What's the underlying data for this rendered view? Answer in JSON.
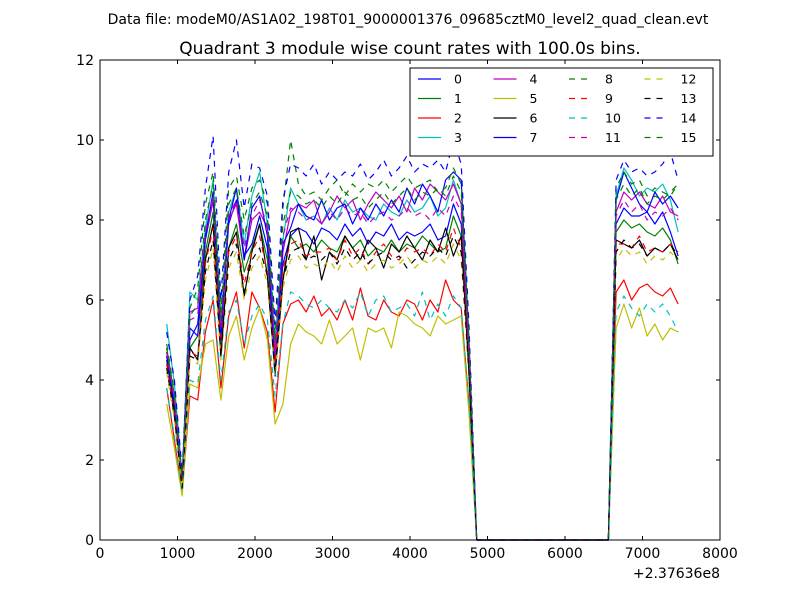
{
  "chart_data": {
    "type": "line",
    "suptitle": "Data file: modeM0/AS1A02_198T01_9000001376_09685cztM0_level2_quad_clean.evt",
    "title": "Quadrant 3 module wise count rates with 100.0s bins.",
    "xlabel": "",
    "ylabel": "",
    "x_offset_label": "+2.37636e8",
    "xlim": [
      0,
      8000
    ],
    "ylim": [
      0,
      12
    ],
    "xticks": [
      0,
      1000,
      2000,
      3000,
      4000,
      5000,
      6000,
      7000,
      8000
    ],
    "yticks": [
      0,
      2,
      4,
      6,
      8,
      10,
      12
    ],
    "grid": false,
    "legend_position": "top-right",
    "legend_columns": 4,
    "x": [
      860,
      960,
      1060,
      1160,
      1260,
      1360,
      1460,
      1560,
      1660,
      1760,
      1860,
      1960,
      2060,
      2160,
      2260,
      2360,
      2460,
      2560,
      2660,
      2760,
      2860,
      2960,
      3060,
      3160,
      3260,
      3360,
      3460,
      3560,
      3660,
      3760,
      3860,
      3960,
      4060,
      4160,
      4260,
      4360,
      4460,
      4560,
      4660,
      4760,
      4860,
      6560,
      6660,
      6760,
      6860,
      6960,
      7060,
      7160,
      7260,
      7360,
      7460
    ],
    "series": [
      {
        "name": "0",
        "color": "#0000ff",
        "dash": "solid",
        "values": [
          4.7,
          3.2,
          1.5,
          5.0,
          5.4,
          7.5,
          8.5,
          5.2,
          7.9,
          8.5,
          7.1,
          7.4,
          8.1,
          7.3,
          4.7,
          6.9,
          7.6,
          7.8,
          7.7,
          7.4,
          7.8,
          7.7,
          7.5,
          7.9,
          7.6,
          7.8,
          7.4,
          7.7,
          7.6,
          7.9,
          7.5,
          7.7,
          7.6,
          7.7,
          7.9,
          7.5,
          7.6,
          8.4,
          7.9,
          4.5,
          0.0,
          0.0,
          7.9,
          8.3,
          8.1,
          8.1,
          8.2,
          7.9,
          8.2,
          7.7,
          7.1
        ]
      },
      {
        "name": "1",
        "color": "#008000",
        "dash": "solid",
        "values": [
          4.6,
          3.3,
          1.4,
          4.8,
          5.1,
          7.2,
          8.2,
          4.6,
          7.3,
          7.9,
          6.7,
          7.3,
          7.9,
          7.0,
          4.5,
          6.5,
          7.6,
          7.3,
          7.4,
          7.2,
          7.5,
          7.3,
          7.2,
          7.6,
          7.3,
          7.5,
          7.1,
          7.3,
          7.2,
          7.5,
          7.2,
          7.4,
          7.3,
          7.6,
          7.4,
          7.2,
          7.3,
          8.1,
          7.6,
          4.3,
          0.0,
          0.0,
          7.7,
          8.0,
          7.8,
          7.9,
          7.7,
          7.6,
          7.8,
          7.5,
          6.9
        ]
      },
      {
        "name": "2",
        "color": "#ff0000",
        "dash": "solid",
        "values": [
          3.8,
          2.5,
          1.2,
          3.6,
          3.5,
          5.2,
          6.0,
          3.8,
          5.6,
          6.2,
          4.8,
          6.2,
          5.8,
          5.2,
          3.2,
          5.4,
          5.9,
          6.0,
          5.7,
          6.1,
          5.6,
          5.8,
          5.5,
          6.0,
          5.5,
          6.3,
          5.6,
          5.5,
          6.0,
          5.7,
          5.6,
          6.0,
          5.9,
          5.5,
          6.0,
          5.7,
          6.5,
          6.0,
          5.8,
          3.4,
          0.0,
          0.0,
          6.2,
          6.5,
          6.0,
          6.3,
          6.4,
          6.2,
          6.1,
          6.3,
          5.9
        ]
      },
      {
        "name": "3",
        "color": "#00bfbf",
        "dash": "solid",
        "values": [
          5.4,
          3.9,
          1.6,
          6.2,
          6.0,
          7.8,
          9.0,
          5.5,
          8.2,
          8.8,
          7.4,
          8.6,
          9.2,
          7.9,
          5.0,
          7.5,
          8.8,
          8.4,
          8.0,
          8.1,
          7.9,
          8.3,
          8.0,
          8.5,
          8.2,
          8.3,
          8.1,
          8.0,
          8.4,
          8.2,
          8.1,
          8.5,
          8.2,
          8.3,
          8.6,
          8.1,
          8.3,
          9.0,
          8.4,
          4.8,
          0.0,
          0.0,
          8.6,
          9.3,
          9.0,
          8.6,
          8.8,
          8.7,
          8.9,
          8.5,
          7.7
        ]
      },
      {
        "name": "4",
        "color": "#bf00bf",
        "dash": "solid",
        "values": [
          4.8,
          3.6,
          1.5,
          5.7,
          5.8,
          7.6,
          8.5,
          5.3,
          8.0,
          8.4,
          7.0,
          8.0,
          8.2,
          7.8,
          4.6,
          7.2,
          8.2,
          8.4,
          8.3,
          8.5,
          7.9,
          8.2,
          8.6,
          8.3,
          8.5,
          8.0,
          8.4,
          8.7,
          8.5,
          8.3,
          8.6,
          8.2,
          8.8,
          8.5,
          8.9,
          8.7,
          8.5,
          8.9,
          8.4,
          4.6,
          0.0,
          0.0,
          8.2,
          8.7,
          8.5,
          8.7,
          8.4,
          8.3,
          8.6,
          8.2,
          8.1
        ]
      },
      {
        "name": "5",
        "color": "#bfbf00",
        "dash": "solid",
        "values": [
          3.4,
          2.3,
          1.1,
          3.9,
          3.8,
          4.9,
          5.0,
          3.5,
          5.1,
          5.6,
          4.5,
          5.3,
          5.8,
          5.0,
          2.9,
          3.4,
          4.9,
          5.4,
          5.2,
          5.1,
          4.9,
          5.5,
          4.9,
          5.1,
          5.3,
          4.5,
          5.3,
          5.2,
          5.3,
          4.8,
          5.7,
          5.6,
          5.4,
          5.3,
          5.1,
          5.6,
          5.4,
          5.5,
          5.6,
          3.2,
          0.0,
          0.0,
          5.3,
          5.9,
          5.3,
          5.8,
          5.1,
          5.4,
          5.0,
          5.3,
          5.2
        ]
      },
      {
        "name": "6",
        "color": "#000000",
        "dash": "solid",
        "values": [
          4.5,
          3.3,
          1.4,
          4.8,
          4.5,
          7.0,
          7.9,
          4.6,
          7.3,
          7.7,
          6.1,
          7.2,
          7.9,
          6.6,
          4.1,
          6.5,
          7.7,
          7.8,
          7.0,
          7.6,
          6.5,
          7.2,
          7.0,
          7.6,
          7.3,
          7.0,
          7.5,
          7.3,
          6.8,
          7.4,
          7.2,
          7.6,
          7.3,
          7.0,
          7.5,
          7.2,
          7.8,
          7.1,
          7.6,
          4.2,
          0.0,
          0.0,
          7.5,
          7.4,
          7.3,
          7.5,
          7.1,
          7.3,
          7.2,
          7.4,
          7.0
        ]
      },
      {
        "name": "7",
        "color": "#0000ff",
        "dash": "solid",
        "values": [
          4.6,
          3.4,
          1.3,
          5.3,
          5.1,
          7.6,
          8.7,
          5.0,
          8.0,
          8.8,
          7.0,
          8.3,
          8.6,
          7.6,
          4.1,
          7.4,
          7.8,
          8.4,
          8.1,
          8.0,
          8.5,
          8.0,
          8.3,
          8.4,
          7.9,
          8.3,
          8.0,
          8.4,
          8.1,
          8.5,
          8.2,
          8.8,
          8.4,
          8.9,
          8.6,
          8.2,
          9.0,
          9.2,
          9.0,
          5.0,
          0.0,
          0.0,
          8.5,
          9.2,
          8.8,
          8.4,
          8.2,
          8.7,
          8.4,
          8.6,
          8.3
        ]
      },
      {
        "name": "8",
        "color": "#008000",
        "dash": "dashed",
        "values": [
          4.9,
          3.7,
          1.6,
          5.8,
          6.3,
          8.4,
          9.2,
          5.7,
          8.8,
          9.1,
          8.0,
          8.8,
          9.0,
          8.4,
          5.1,
          8.3,
          10.0,
          8.9,
          8.6,
          8.7,
          8.5,
          8.8,
          9.0,
          8.6,
          8.9,
          8.7,
          8.9,
          8.8,
          9.0,
          8.7,
          8.9,
          9.1,
          8.8,
          8.9,
          9.0,
          8.7,
          8.8,
          9.3,
          8.9,
          5.1,
          0.0,
          0.0,
          8.8,
          9.2,
          8.9,
          9.0,
          8.6,
          8.8,
          8.7,
          8.6,
          8.9
        ]
      },
      {
        "name": "9",
        "color": "#ff0000",
        "dash": "dashed",
        "values": [
          4.4,
          3.1,
          1.3,
          4.7,
          4.6,
          6.9,
          7.8,
          4.8,
          7.2,
          7.6,
          6.4,
          7.2,
          7.6,
          6.7,
          4.4,
          6.8,
          7.4,
          7.5,
          7.1,
          7.2,
          7.2,
          7.3,
          7.0,
          7.5,
          7.1,
          7.3,
          6.9,
          7.2,
          7.4,
          7.1,
          7.0,
          7.3,
          7.2,
          7.3,
          7.1,
          7.4,
          7.2,
          7.8,
          7.3,
          4.3,
          0.0,
          0.0,
          7.4,
          7.4,
          7.3,
          7.6,
          7.2,
          7.3,
          7.2,
          7.4,
          7.2
        ]
      },
      {
        "name": "10",
        "color": "#00bfbf",
        "dash": "dashed",
        "values": [
          3.8,
          2.6,
          1.2,
          4.0,
          3.9,
          5.5,
          6.1,
          4.0,
          5.7,
          6.0,
          4.9,
          5.6,
          5.9,
          5.5,
          3.6,
          5.4,
          6.2,
          6.1,
          5.9,
          5.8,
          6.0,
          5.8,
          5.7,
          6.0,
          5.8,
          6.2,
          5.6,
          6.0,
          6.1,
          5.7,
          5.8,
          5.9,
          5.6,
          6.2,
          5.5,
          5.9,
          5.6,
          6.1,
          5.8,
          3.5,
          0.0,
          0.0,
          5.7,
          6.1,
          5.8,
          5.6,
          5.9,
          5.7,
          5.9,
          5.6,
          5.2
        ]
      },
      {
        "name": "11",
        "color": "#bf00bf",
        "dash": "dashed",
        "values": [
          4.7,
          3.5,
          1.5,
          5.5,
          5.6,
          7.7,
          8.6,
          5.3,
          8.1,
          8.5,
          7.3,
          8.1,
          8.5,
          7.8,
          4.8,
          7.6,
          8.3,
          8.2,
          8.0,
          8.1,
          7.9,
          8.2,
          8.0,
          8.3,
          8.1,
          8.2,
          7.9,
          8.1,
          8.2,
          8.0,
          8.1,
          8.3,
          8.1,
          8.2,
          8.0,
          8.3,
          8.1,
          8.6,
          8.2,
          4.7,
          0.0,
          0.0,
          8.1,
          8.5,
          8.2,
          8.4,
          8.0,
          8.2,
          8.1,
          8.3,
          8.0
        ]
      },
      {
        "name": "12",
        "color": "#bfbf00",
        "dash": "dashed",
        "values": [
          4.2,
          3.0,
          1.3,
          4.5,
          4.4,
          6.5,
          7.3,
          4.5,
          6.8,
          7.2,
          6.0,
          6.8,
          7.1,
          6.4,
          4.1,
          6.3,
          7.0,
          7.1,
          6.8,
          6.9,
          6.8,
          7.0,
          6.7,
          7.1,
          6.8,
          7.0,
          6.7,
          6.9,
          7.0,
          6.8,
          6.9,
          7.1,
          6.8,
          7.0,
          6.9,
          7.1,
          6.9,
          7.4,
          7.0,
          4.1,
          0.0,
          0.0,
          7.0,
          7.3,
          7.1,
          7.2,
          6.9,
          7.1,
          7.0,
          7.2,
          7.0
        ]
      },
      {
        "name": "13",
        "color": "#000000",
        "dash": "dashed",
        "values": [
          4.3,
          3.1,
          1.3,
          4.6,
          4.5,
          6.7,
          7.5,
          4.6,
          7.0,
          7.4,
          6.2,
          7.0,
          7.3,
          6.6,
          4.2,
          6.5,
          7.2,
          7.3,
          7.0,
          7.1,
          7.0,
          7.2,
          6.9,
          7.3,
          7.0,
          7.2,
          6.9,
          7.1,
          7.2,
          7.0,
          7.1,
          6.8,
          7.0,
          7.2,
          7.1,
          7.3,
          7.1,
          7.6,
          7.2,
          4.2,
          0.0,
          0.0,
          7.2,
          7.5,
          7.3,
          7.4,
          7.1,
          7.3,
          7.2,
          7.4,
          7.1
        ]
      },
      {
        "name": "14",
        "color": "#0000ff",
        "dash": "dashed",
        "values": [
          5.2,
          4.0,
          1.7,
          6.0,
          6.6,
          8.8,
          10.1,
          6.0,
          9.2,
          10.0,
          8.3,
          9.4,
          9.3,
          8.6,
          5.4,
          8.5,
          9.4,
          9.3,
          9.1,
          9.4,
          8.9,
          9.2,
          9.0,
          9.2,
          9.1,
          9.4,
          9.0,
          9.2,
          9.5,
          9.1,
          9.3,
          9.6,
          9.2,
          9.4,
          9.3,
          9.5,
          9.2,
          10.0,
          9.4,
          5.4,
          0.0,
          0.0,
          9.0,
          9.5,
          9.2,
          9.3,
          9.1,
          9.2,
          9.4,
          9.7,
          9.0
        ]
      },
      {
        "name": "15",
        "color": "#008000",
        "dash": "dashed",
        "values": [
          4.8,
          3.6,
          1.5,
          5.6,
          5.9,
          8.0,
          8.9,
          5.5,
          8.4,
          8.8,
          7.6,
          8.4,
          8.7,
          8.1,
          5.0,
          7.9,
          8.7,
          8.6,
          8.4,
          8.5,
          8.3,
          8.6,
          8.4,
          8.7,
          8.5,
          8.6,
          8.3,
          8.5,
          8.7,
          8.4,
          8.6,
          8.8,
          8.5,
          8.7,
          8.6,
          8.8,
          8.6,
          9.1,
          8.7,
          5.0,
          0.0,
          0.0,
          8.5,
          8.9,
          8.6,
          8.8,
          8.4,
          8.6,
          8.5,
          8.7,
          8.9
        ]
      }
    ]
  }
}
